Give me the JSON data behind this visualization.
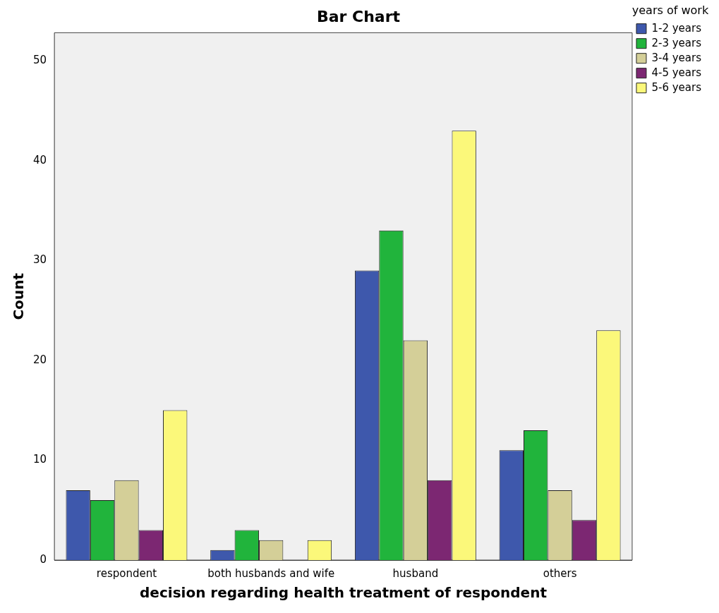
{
  "chart_data": {
    "type": "bar",
    "title": "Bar Chart",
    "xlabel": "decision regarding health treatment of respondent",
    "ylabel": "Count",
    "legend_title": "years of work",
    "legend": "right",
    "categories": [
      "respondent",
      "both husbands and wife",
      "husband",
      "others"
    ],
    "series": [
      {
        "name": "1-2 years",
        "color": "#3e58ac",
        "values": [
          7,
          1,
          29,
          11
        ]
      },
      {
        "name": "2-3 years",
        "color": "#21b43c",
        "values": [
          6,
          3,
          33,
          13
        ]
      },
      {
        "name": "3-4 years",
        "color": "#d4cf98",
        "values": [
          8,
          2,
          22,
          7
        ]
      },
      {
        "name": "4-5 years",
        "color": "#7c2772",
        "values": [
          3,
          null,
          8,
          4
        ]
      },
      {
        "name": "5-6 years",
        "color": "#fbf87a",
        "values": [
          15,
          2,
          43,
          23
        ]
      }
    ],
    "ylim": [
      0,
      52.8
    ],
    "yticks": [
      0,
      10,
      20,
      30,
      40,
      50
    ],
    "grid": false
  }
}
